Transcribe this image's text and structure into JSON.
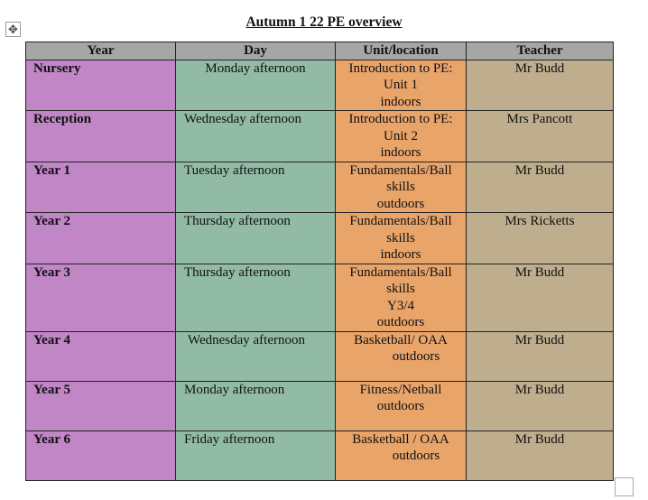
{
  "title": "Autumn 1 22 PE overview",
  "colors": {
    "header": "#a6a6a6",
    "year": "#c086c6",
    "day": "#92bba6",
    "unit": "#e9a46a",
    "teacher": "#bfae8e"
  },
  "headers": [
    "Year",
    "Day",
    "Unit/location",
    "Teacher"
  ],
  "rows": [
    {
      "year": "Nursery",
      "day": "Monday afternoon",
      "unit": [
        "Introduction to PE:",
        "Unit 1",
        "indoors"
      ],
      "teacher": "Mr Budd"
    },
    {
      "year": "Reception",
      "day": "Wednesday afternoon",
      "unit": [
        "Introduction to PE:",
        "Unit 2",
        "indoors"
      ],
      "teacher": "Mrs Pancott"
    },
    {
      "year": "Year 1",
      "day": "Tuesday afternoon",
      "unit": [
        "Fundamentals/Ball",
        "skills",
        "outdoors"
      ],
      "teacher": "Mr Budd"
    },
    {
      "year": "Year 2",
      "day": "Thursday afternoon",
      "unit": [
        "Fundamentals/Ball",
        "skills",
        "indoors"
      ],
      "teacher": "Mrs Ricketts"
    },
    {
      "year": "Year 3",
      "day": "Thursday afternoon",
      "unit": [
        "Fundamentals/Ball",
        "skills",
        "Y3/4",
        "outdoors"
      ],
      "teacher": "Mr Budd"
    },
    {
      "year": "Year 4",
      "day": "Wednesday afternoon",
      "unit": [
        "Basketball/ OAA",
        "outdoors"
      ],
      "teacher": "Mr Budd"
    },
    {
      "year": "Year 5",
      "day": "Monday afternoon",
      "unit": [
        "Fitness/Netball",
        "outdoors"
      ],
      "teacher": "Mr Budd"
    },
    {
      "year": "Year 6",
      "day": "Friday afternoon",
      "unit": [
        "Basketball / OAA",
        "outdoors"
      ],
      "teacher": "Mr Budd"
    }
  ]
}
